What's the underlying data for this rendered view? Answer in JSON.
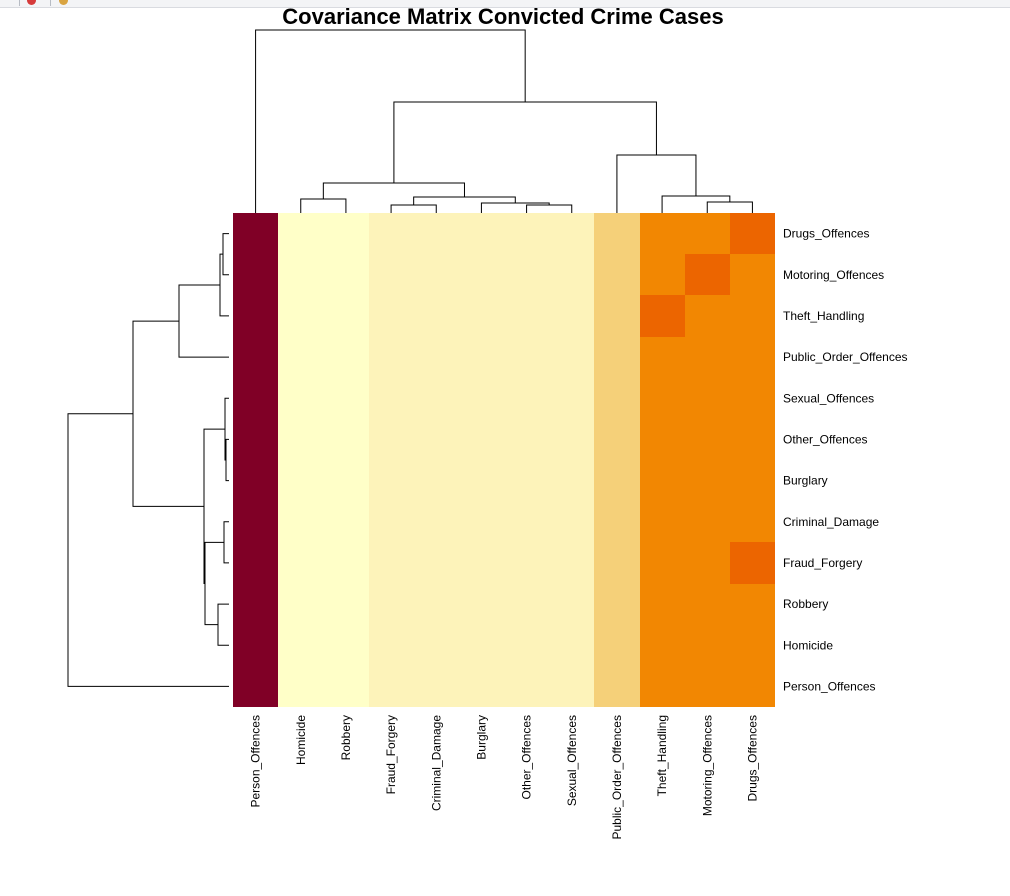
{
  "chart_data": {
    "type": "heatmap",
    "title": "Covariance Matrix Convicted Crime Cases",
    "columns": [
      "Person_Offences",
      "Homicide",
      "Robbery",
      "Fraud_Forgery",
      "Criminal_Damage",
      "Burglary",
      "Other_Offences",
      "Sexual_Offences",
      "Public_Order_Offences",
      "Theft_Handling",
      "Motoring_Offences",
      "Drugs_Offences"
    ],
    "rows_top_to_bottom": [
      "Drugs_Offences",
      "Motoring_Offences",
      "Theft_Handling",
      "Public_Order_Offences",
      "Sexual_Offences",
      "Other_Offences",
      "Burglary",
      "Criminal_Damage",
      "Fraud_Forgery",
      "Robbery",
      "Homicide",
      "Person_Offences"
    ],
    "color_scale": "YlOrRd (heat, light yellow = lowest, dark red = highest)",
    "palette": {
      "dark_red": "#800026",
      "pale_yellow": "#ffffc8",
      "light_yellow": "#fdf3ba",
      "light_orange": "#f5d079",
      "orange": "#f28702",
      "dark_orange": "#ec6500"
    },
    "column_colors": [
      "dark_red",
      "pale_yellow",
      "pale_yellow",
      "light_yellow",
      "light_yellow",
      "light_yellow",
      "light_yellow",
      "light_yellow",
      "light_orange",
      "orange",
      "orange",
      "orange"
    ],
    "highlighted_cells": [
      {
        "row": "Drugs_Offences",
        "column": "Drugs_Offences",
        "color": "dark_orange"
      },
      {
        "row": "Motoring_Offences",
        "column": "Motoring_Offences",
        "color": "dark_orange"
      },
      {
        "row": "Theft_Handling",
        "column": "Theft_Handling",
        "color": "dark_orange"
      },
      {
        "row": "Fraud_Forgery",
        "column": "Drugs_Offences",
        "color": "dark_orange"
      }
    ],
    "column_dendrogram": "hierarchical clustering of columns (top)",
    "row_dendrogram": "hierarchical clustering of rows (left)"
  }
}
